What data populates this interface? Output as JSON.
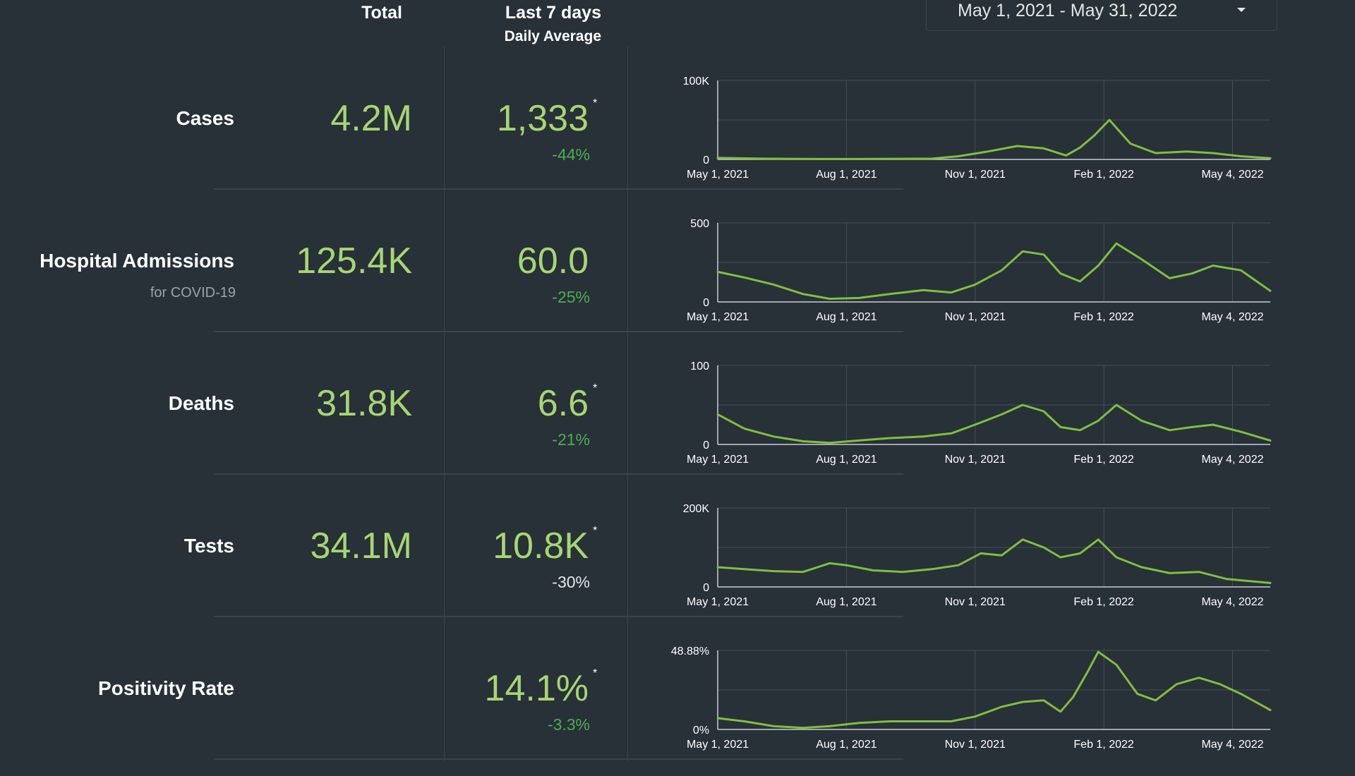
{
  "header": {
    "total_label": "Total",
    "last7_label": "Last 7 days",
    "daily_avg_label": "Daily Average"
  },
  "date_range": {
    "value": "May 1, 2021 - May 31, 2022"
  },
  "colors": {
    "background": "#283038",
    "accent": "#a6d672",
    "line": "#7fbf3f",
    "change_green": "#4caf50",
    "grid": "#454f59"
  },
  "metrics": [
    {
      "label": "Cases",
      "sublabel": "",
      "total": "4.2M",
      "avg": "1,333",
      "star": "*",
      "change": "-44%",
      "change_color": "green"
    },
    {
      "label": "Hospital Admissions",
      "sublabel": "for COVID-19",
      "total": "125.4K",
      "avg": "60.0",
      "star": "",
      "change": "-25%",
      "change_color": "green"
    },
    {
      "label": "Deaths",
      "sublabel": "",
      "total": "31.8K",
      "avg": "6.6",
      "star": "*",
      "change": "-21%",
      "change_color": "green"
    },
    {
      "label": "Tests",
      "sublabel": "",
      "total": "34.1M",
      "avg": "10.8K",
      "star": "*",
      "change": "-30%",
      "change_color": "white"
    },
    {
      "label": "Positivity Rate",
      "sublabel": "",
      "total": "",
      "avg": "14.1%",
      "star": "*",
      "change": "-3.3%",
      "change_color": "green"
    }
  ],
  "chart_data": [
    {
      "type": "line",
      "name": "Cases",
      "ylim": [
        0,
        100000
      ],
      "y_ticks": [
        "100K",
        "0"
      ],
      "x_ticks": [
        "May 1, 2021",
        "Aug 1, 2021",
        "Nov 1, 2021",
        "Feb 1, 2022",
        "May 4, 2022"
      ],
      "grid": true,
      "x": [
        "2021-05-01",
        "2021-06-01",
        "2021-07-01",
        "2021-08-01",
        "2021-09-01",
        "2021-10-01",
        "2021-10-20",
        "2021-11-10",
        "2021-12-01",
        "2021-12-20",
        "2022-01-05",
        "2022-01-15",
        "2022-01-25",
        "2022-02-05",
        "2022-02-20",
        "2022-03-10",
        "2022-04-01",
        "2022-04-20",
        "2022-05-10",
        "2022-05-31"
      ],
      "values": [
        2000,
        1000,
        600,
        500,
        800,
        1000,
        4000,
        10000,
        17000,
        14000,
        5000,
        15000,
        30000,
        50000,
        20000,
        8000,
        10000,
        8000,
        4000,
        1500
      ]
    },
    {
      "type": "line",
      "name": "Hospital Admissions",
      "ylim": [
        0,
        500
      ],
      "y_ticks": [
        "500",
        "0"
      ],
      "x_ticks": [
        "May 1, 2021",
        "Aug 1, 2021",
        "Nov 1, 2021",
        "Feb 1, 2022",
        "May 4, 2022"
      ],
      "grid": true,
      "x": [
        "2021-05-01",
        "2021-05-20",
        "2021-06-10",
        "2021-07-01",
        "2021-07-20",
        "2021-08-10",
        "2021-09-01",
        "2021-09-25",
        "2021-10-15",
        "2021-11-01",
        "2021-11-20",
        "2021-12-05",
        "2021-12-20",
        "2022-01-01",
        "2022-01-15",
        "2022-01-28",
        "2022-02-10",
        "2022-02-28",
        "2022-03-20",
        "2022-04-05",
        "2022-04-20",
        "2022-05-10",
        "2022-05-31"
      ],
      "values": [
        190,
        155,
        110,
        50,
        20,
        25,
        50,
        75,
        60,
        110,
        200,
        320,
        300,
        180,
        130,
        230,
        370,
        270,
        150,
        180,
        230,
        200,
        70
      ]
    },
    {
      "type": "line",
      "name": "Deaths",
      "ylim": [
        0,
        100
      ],
      "y_ticks": [
        "100",
        "0"
      ],
      "x_ticks": [
        "May 1, 2021",
        "Aug 1, 2021",
        "Nov 1, 2021",
        "Feb 1, 2022",
        "May 4, 2022"
      ],
      "grid": true,
      "x": [
        "2021-05-01",
        "2021-05-20",
        "2021-06-10",
        "2021-07-01",
        "2021-07-20",
        "2021-08-10",
        "2021-09-01",
        "2021-09-25",
        "2021-10-15",
        "2021-11-01",
        "2021-11-20",
        "2021-12-05",
        "2021-12-20",
        "2022-01-01",
        "2022-01-15",
        "2022-01-28",
        "2022-02-10",
        "2022-02-28",
        "2022-03-20",
        "2022-04-05",
        "2022-04-20",
        "2022-05-10",
        "2022-05-31"
      ],
      "values": [
        38,
        20,
        10,
        4,
        2,
        5,
        8,
        10,
        14,
        25,
        38,
        50,
        42,
        22,
        18,
        30,
        50,
        30,
        18,
        22,
        25,
        16,
        5
      ]
    },
    {
      "type": "line",
      "name": "Tests",
      "ylim": [
        0,
        200000
      ],
      "y_ticks": [
        "200K",
        "0"
      ],
      "x_ticks": [
        "May 1, 2021",
        "Aug 1, 2021",
        "Nov 1, 2021",
        "Feb 1, 2022",
        "May 4, 2022"
      ],
      "grid": true,
      "x": [
        "2021-05-01",
        "2021-05-20",
        "2021-06-10",
        "2021-07-01",
        "2021-07-20",
        "2021-08-01",
        "2021-08-20",
        "2021-09-10",
        "2021-10-01",
        "2021-10-20",
        "2021-11-05",
        "2021-11-20",
        "2021-12-05",
        "2021-12-20",
        "2022-01-01",
        "2022-01-15",
        "2022-01-28",
        "2022-02-10",
        "2022-02-28",
        "2022-03-20",
        "2022-04-10",
        "2022-04-30",
        "2022-05-31"
      ],
      "values": [
        50000,
        45000,
        40000,
        38000,
        60000,
        55000,
        42000,
        38000,
        45000,
        55000,
        85000,
        80000,
        120000,
        100000,
        75000,
        85000,
        120000,
        75000,
        50000,
        35000,
        38000,
        20000,
        10000
      ]
    },
    {
      "type": "line",
      "name": "Positivity Rate",
      "ylim": [
        0,
        48.88
      ],
      "y_ticks": [
        "48.88%",
        "0%"
      ],
      "x_ticks": [
        "May 1, 2021",
        "Aug 1, 2021",
        "Nov 1, 2021",
        "Feb 1, 2022",
        "May 4, 2022"
      ],
      "grid": true,
      "x": [
        "2021-05-01",
        "2021-05-20",
        "2021-06-10",
        "2021-07-01",
        "2021-07-20",
        "2021-08-10",
        "2021-09-01",
        "2021-09-25",
        "2021-10-15",
        "2021-11-01",
        "2021-11-20",
        "2021-12-05",
        "2021-12-20",
        "2022-01-01",
        "2022-01-10",
        "2022-01-20",
        "2022-01-28",
        "2022-02-10",
        "2022-02-25",
        "2022-03-10",
        "2022-03-25",
        "2022-04-10",
        "2022-04-25",
        "2022-05-10",
        "2022-05-31"
      ],
      "values": [
        7,
        5,
        2,
        1,
        2,
        4,
        5,
        5,
        5,
        8,
        14,
        17,
        18,
        11,
        20,
        35,
        48,
        40,
        22,
        18,
        28,
        32,
        28,
        22,
        12
      ]
    }
  ]
}
